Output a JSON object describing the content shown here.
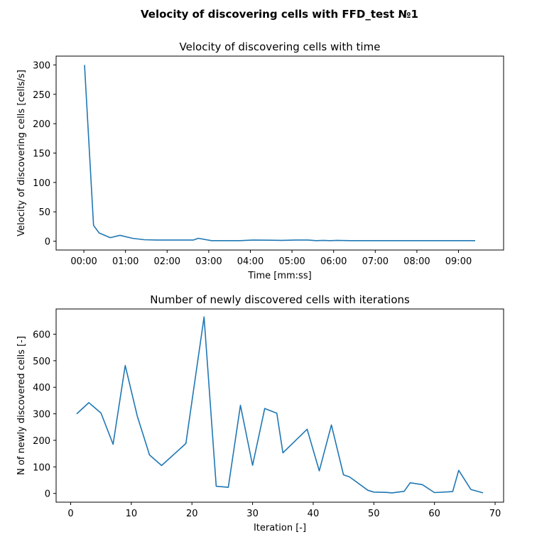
{
  "figure": {
    "suptitle": "Velocity of discovering cells with FFD_test №1",
    "line_color": "#1f77b4"
  },
  "chart_data": [
    {
      "type": "line",
      "title": "Velocity of discovering cells with time",
      "xlabel": "Time [mm:ss]",
      "ylabel": "Velocity of discovering cells [cells/s]",
      "xlim": [
        -40,
        605
      ],
      "ylim": [
        -15,
        315
      ],
      "xticks": [
        0,
        60,
        120,
        180,
        240,
        300,
        360,
        420,
        480,
        540
      ],
      "xtick_labels": [
        "00:00",
        "01:00",
        "02:00",
        "03:00",
        "04:00",
        "05:00",
        "06:00",
        "07:00",
        "08:00",
        "09:00"
      ],
      "yticks": [
        0,
        50,
        100,
        150,
        200,
        250,
        300
      ],
      "ytick_labels": [
        "0",
        "50",
        "100",
        "150",
        "200",
        "250",
        "300"
      ],
      "grid": false,
      "series": [
        {
          "x": [
            1,
            14,
            22,
            38,
            52,
            70,
            87,
            105,
            125,
            145,
            158,
            165,
            184,
            225,
            244,
            285,
            305,
            323,
            335,
            345,
            355,
            365,
            385,
            405,
            445,
            485,
            525,
            564
          ],
          "y": [
            300,
            27,
            14,
            6,
            10,
            5,
            2.5,
            2,
            2,
            2,
            2,
            5,
            1,
            1,
            2,
            1.5,
            2,
            2,
            1,
            1.5,
            1,
            1.5,
            1,
            1,
            1,
            1,
            1,
            1
          ]
        }
      ]
    },
    {
      "type": "line",
      "title": "Number of newly discovered cells with iterations",
      "xlabel": "Iteration [-]",
      "ylabel": "N of newly discovered cells [-]",
      "xlim": [
        -2.4,
        71.4
      ],
      "ylim": [
        -33,
        695
      ],
      "xticks": [
        0,
        10,
        20,
        30,
        40,
        50,
        60,
        70
      ],
      "xtick_labels": [
        "0",
        "10",
        "20",
        "30",
        "40",
        "50",
        "60",
        "70"
      ],
      "yticks": [
        0,
        100,
        200,
        300,
        400,
        500,
        600
      ],
      "ytick_labels": [
        "0",
        "100",
        "200",
        "300",
        "400",
        "500",
        "600"
      ],
      "grid": false,
      "series": [
        {
          "x": [
            1,
            3,
            5,
            7,
            9,
            11,
            13,
            15,
            19,
            22,
            24,
            26,
            28,
            30,
            32,
            34,
            35,
            39,
            41,
            43,
            45,
            46,
            49,
            50,
            52,
            53,
            55,
            56,
            58,
            60,
            63,
            64,
            66,
            68
          ],
          "y": [
            300,
            342,
            303,
            185,
            482,
            290,
            145,
            105,
            188,
            665,
            27,
            23,
            332,
            106,
            320,
            302,
            153,
            242,
            85,
            258,
            70,
            62,
            12,
            5,
            4,
            2,
            8,
            40,
            33,
            3,
            7,
            87,
            15,
            2
          ]
        }
      ]
    }
  ]
}
